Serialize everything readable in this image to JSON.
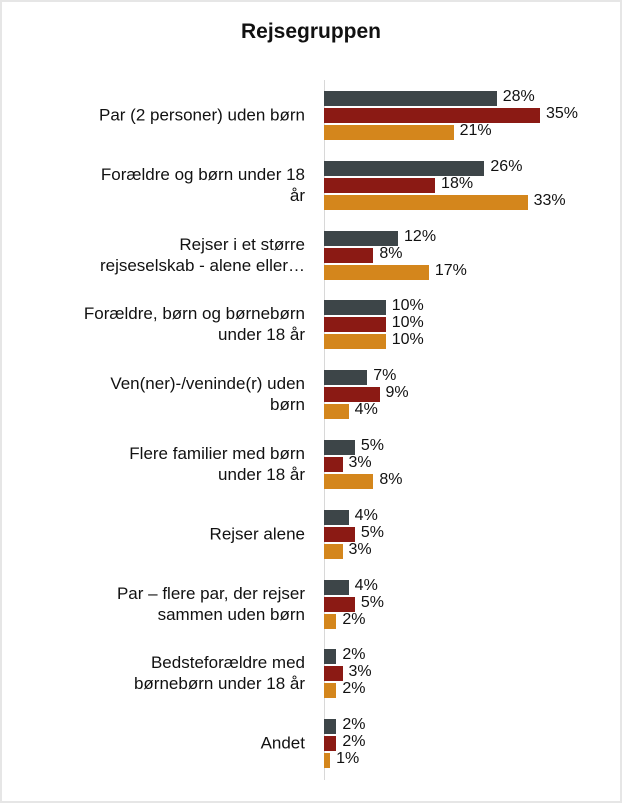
{
  "chart_data": {
    "type": "bar",
    "orientation": "horizontal",
    "title": "Rejsegruppen",
    "categories": [
      "Par (2 personer) uden børn",
      "Forældre og børn under 18\når",
      "Rejser i et større\nrejseselskab - alene eller…",
      "Forældre, børn og børnebørn\nunder 18 år",
      "Ven(ner)-/veninde(r) uden\nbørn",
      "Flere familier med børn\nunder 18 år",
      "Rejser alene",
      "Par – flere par, der rejser\nsammen uden børn",
      "Bedsteforældre med\nbørnebørn under 18 år",
      "Andet"
    ],
    "series": [
      {
        "color": "#3d4548",
        "values": [
          28,
          26,
          12,
          10,
          7,
          5,
          4,
          4,
          2,
          2
        ],
        "value_labels": [
          "28%",
          "26%",
          "12%",
          "10%",
          "7%",
          "5%",
          "4%",
          "4%",
          "2%",
          "2%"
        ]
      },
      {
        "color": "#8b1a14",
        "values": [
          35,
          18,
          8,
          10,
          9,
          3,
          5,
          5,
          3,
          2
        ],
        "value_labels": [
          "35%",
          "18%",
          "8%",
          "10%",
          "9%",
          "3%",
          "5%",
          "5%",
          "3%",
          "2%"
        ]
      },
      {
        "color": "#d4861c",
        "values": [
          21,
          33,
          17,
          10,
          4,
          8,
          3,
          2,
          2,
          1
        ],
        "value_labels": [
          "21%",
          "33%",
          "17%",
          "10%",
          "4%",
          "8%",
          "3%",
          "2%",
          "2%",
          "1%"
        ]
      }
    ]
  }
}
